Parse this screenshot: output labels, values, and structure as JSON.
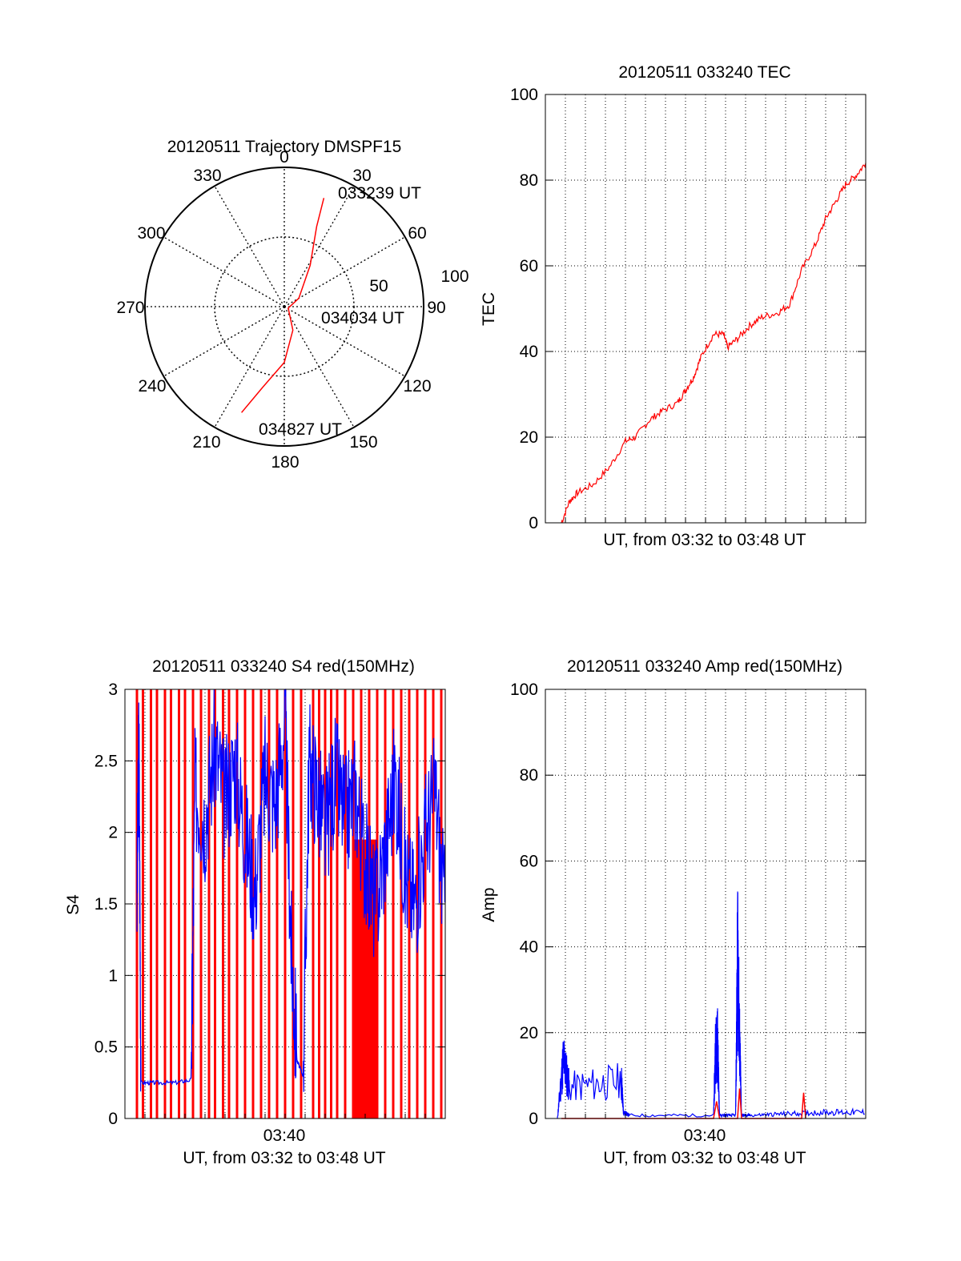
{
  "chart_data": [
    {
      "type": "polar",
      "title": "20120511 Trajectory DMSPF15",
      "azimuth_labels": [
        "0",
        "30",
        "60",
        "90",
        "120",
        "150",
        "180",
        "210",
        "240",
        "270",
        "300",
        "330"
      ],
      "radial_labels": [
        "50",
        "100"
      ],
      "track_labels": [
        "033239 UT",
        "034034 UT",
        "034827 UT"
      ],
      "track_color": "#ff0000",
      "track": [
        {
          "az": 20,
          "zen": 83
        },
        {
          "az": 22,
          "zen": 62
        },
        {
          "az": 32,
          "zen": 35
        },
        {
          "az": 60,
          "zen": 12
        },
        {
          "az": 110,
          "zen": 3
        },
        {
          "az": 160,
          "zen": 18
        },
        {
          "az": 180,
          "zen": 40
        },
        {
          "az": 195,
          "zen": 60
        },
        {
          "az": 202,
          "zen": 82
        }
      ]
    },
    {
      "type": "line",
      "title": "20120511 033240 TEC",
      "ylabel": "TEC",
      "xlabel": "UT, from 03:32 to 03:48 UT",
      "xlim": [
        0,
        16
      ],
      "ylim": [
        0,
        100
      ],
      "yticks": [
        "0",
        "20",
        "40",
        "60",
        "80",
        "100"
      ],
      "grid": true,
      "series": [
        {
          "color": "#ff0000",
          "x": [
            0.8,
            1.2,
            1.6,
            2.4,
            3.2,
            4.0,
            4.5,
            5.2,
            5.8,
            6.6,
            7.0,
            7.4,
            7.8,
            8.4,
            8.9,
            9.1,
            9.6,
            10.2,
            10.8,
            11.6,
            12.2,
            12.8,
            13.5,
            14.0,
            14.5,
            15.0,
            15.5,
            16.0
          ],
          "y": [
            0,
            5,
            7,
            9,
            13,
            19,
            20,
            24,
            26,
            28,
            31,
            34,
            39,
            44,
            44,
            41,
            43,
            46,
            48,
            49,
            51,
            59,
            65,
            71,
            75,
            79,
            81,
            84
          ]
        }
      ]
    },
    {
      "type": "line",
      "title": "20120511 033240 S4 red(150MHz)",
      "ylabel": "S4",
      "xlabel": "UT, from 03:32 to 03:48 UT",
      "xtick_labels": [
        "03:40"
      ],
      "xlim": [
        0,
        16
      ],
      "ylim": [
        0,
        3
      ],
      "yticks": [
        "0",
        "0.5",
        "1",
        "1.5",
        "2",
        "2.5",
        "3"
      ],
      "grid": true,
      "series": [
        {
          "color": "#ff0000",
          "spikes_x": [
            0.6,
            0.9,
            1.3,
            1.6,
            2.0,
            2.3,
            2.7,
            3.0,
            3.4,
            3.8,
            4.2,
            4.5,
            4.9,
            5.2,
            5.6,
            6.0,
            6.4,
            6.8,
            7.2,
            7.6,
            8.0,
            8.4,
            8.8,
            9.4,
            9.7,
            10.0,
            10.3,
            10.6,
            11.0,
            11.4,
            11.8,
            12.2,
            12.6,
            13.0,
            13.4,
            13.8,
            14.2,
            14.6,
            15.0,
            15.4,
            15.8
          ]
        },
        {
          "color": "#0000ff",
          "x": [
            0.6,
            0.7,
            0.8,
            1.5,
            2.5,
            3.3,
            3.5,
            4.0,
            4.5,
            5.0,
            5.5,
            6.0,
            6.5,
            7.0,
            7.5,
            8.0,
            8.3,
            8.6,
            8.9,
            9.2,
            9.6,
            10.0,
            10.5,
            11.0,
            11.5,
            12.0,
            12.5,
            13.0,
            13.5,
            14.0,
            14.5,
            15.0,
            15.5,
            16.0
          ],
          "y": [
            1.5,
            2.7,
            0.25,
            0.25,
            0.25,
            0.27,
            2.3,
            2.1,
            2.6,
            2.2,
            2.5,
            2.0,
            1.6,
            2.4,
            2.2,
            2.8,
            1.2,
            0.4,
            0.3,
            2.5,
            2.3,
            2.0,
            2.4,
            2.1,
            2.3,
            1.8,
            1.5,
            1.9,
            2.4,
            1.7,
            1.5,
            2.0,
            2.3,
            1.4
          ]
        }
      ]
    },
    {
      "type": "line",
      "title": "20120511 033240 Amp red(150MHz)",
      "ylabel": "Amp",
      "xlabel": "UT, from 03:32 to 03:48 UT",
      "xtick_labels": [
        "03:40"
      ],
      "xlim": [
        0,
        16
      ],
      "ylim": [
        0,
        100
      ],
      "yticks": [
        "0",
        "20",
        "40",
        "60",
        "80",
        "100"
      ],
      "grid": true,
      "series": [
        {
          "color": "#0000ff",
          "x": [
            0.6,
            0.9,
            1.2,
            3.8,
            3.9,
            4.2,
            8.4,
            8.5,
            8.6,
            8.7,
            9.5,
            9.6,
            9.7,
            9.8,
            10.2,
            12.0,
            14.0,
            16.0
          ],
          "y": [
            0,
            19,
            10,
            12,
            2,
            1,
            1,
            22,
            24,
            1,
            1,
            52,
            25,
            1,
            1,
            1.5,
            2,
            2
          ]
        },
        {
          "color": "#ff0000",
          "x": [
            0.8,
            3.9,
            8.4,
            8.55,
            8.7,
            9.6,
            9.7,
            9.8,
            12.8,
            12.9,
            13.0
          ],
          "y": [
            0,
            0,
            0,
            4,
            0,
            0,
            7,
            0,
            0,
            6,
            0
          ]
        }
      ]
    }
  ]
}
